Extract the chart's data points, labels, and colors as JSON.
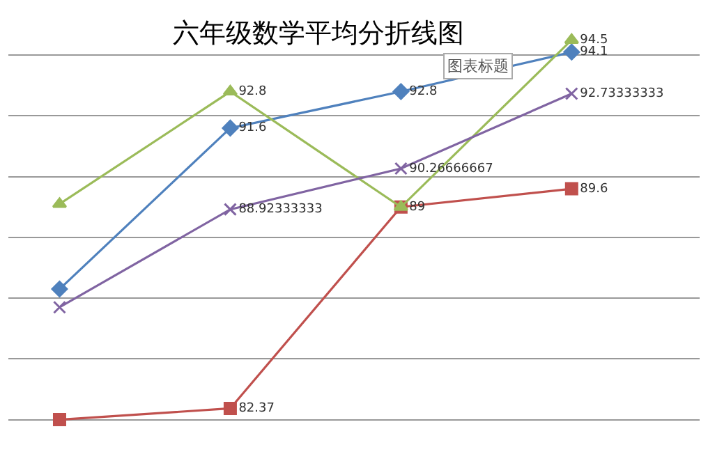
{
  "chart_data": {
    "type": "line",
    "title": "六年级数学平均分折线图",
    "annotations": [
      "图表标题"
    ],
    "categories": [
      null,
      null,
      null,
      null
    ],
    "grid": "y",
    "tick_labels": false,
    "series": [
      {
        "color": "#4f81bd",
        "marker": "diamond",
        "values": [
          86.3,
          91.6,
          92.8,
          94.1
        ],
        "value_labels": [
          null,
          "91.6",
          "92.8",
          "94.1"
        ]
      },
      {
        "color": "#c0504d",
        "marker": "square",
        "values": [
          82.0,
          82.37,
          89,
          89.6
        ],
        "value_labels": [
          null,
          "82.37",
          "89",
          "89.6"
        ]
      },
      {
        "color": "#9bbb59",
        "marker": "triangle",
        "values": [
          89.1,
          92.8,
          89,
          94.5
        ],
        "value_labels": [
          null,
          "92.8",
          null,
          "94.5"
        ]
      },
      {
        "color": "#8064a2",
        "marker": "cross",
        "values": [
          85.7,
          88.92333333,
          90.26666667,
          92.73333333
        ],
        "value_labels": [
          null,
          "88.92333333",
          "90.26666667",
          "92.73333333"
        ]
      }
    ]
  }
}
